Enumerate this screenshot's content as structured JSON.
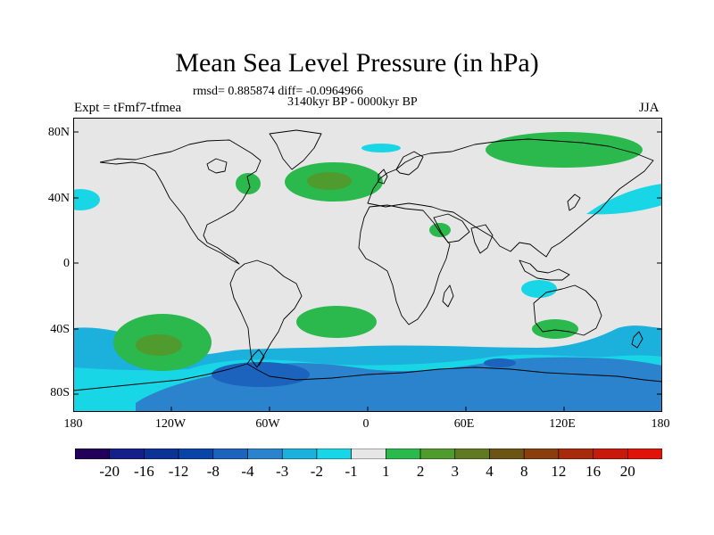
{
  "title": "Mean Sea Level Pressure (in hPa)",
  "stats": "rmsd= 0.885874 diff= -0.0964966",
  "period": "3140kyr BP - 0000kyr BP",
  "experiment": "Expt = tFmf7-tfmea",
  "season": "JJA",
  "lat_labels": [
    "80N",
    "40N",
    "0",
    "40S",
    "80S"
  ],
  "lon_labels": [
    "180",
    "120W",
    "60W",
    "0",
    "60E",
    "120E",
    "180"
  ],
  "colorbar": {
    "labels": [
      "-20",
      "-16",
      "-12",
      "-8",
      "-4",
      "-3",
      "-2",
      "-1",
      "1",
      "2",
      "3",
      "4",
      "8",
      "12",
      "16",
      "20"
    ],
    "colors": [
      "#22005a",
      "#151f8a",
      "#0c3296",
      "#0a44a6",
      "#1b63bd",
      "#2a83cc",
      "#1cb0dc",
      "#19d6e6",
      "#e6e6e6",
      "#2bb84d",
      "#4f9b2e",
      "#5f7a22",
      "#6b5414",
      "#8a3e0e",
      "#a82a0c",
      "#c71a0c",
      "#e0130b"
    ]
  },
  "colors": {
    "background_field": "#e6e6e6",
    "coast": "#000000"
  }
}
